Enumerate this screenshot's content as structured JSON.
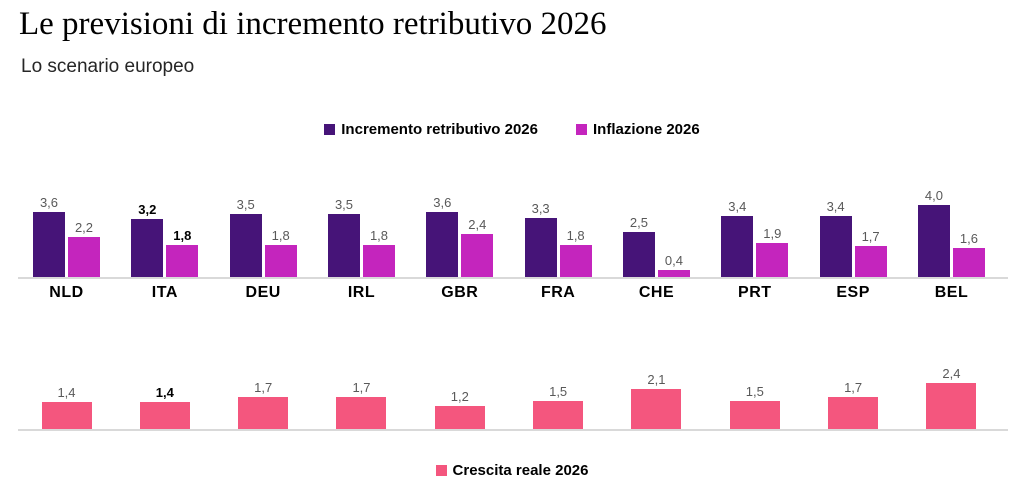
{
  "header": {
    "title": "Le previsioni di incremento retributivo 2026",
    "subtitle": "Lo scenario europeo"
  },
  "colors": {
    "salary": "#461478",
    "inflation": "#c425bd",
    "real_growth": "#f4567e",
    "value_label": "#595959",
    "highlight_label": "#000000",
    "axis_line": "#d9d9d9"
  },
  "chart_data": [
    {
      "type": "bar",
      "title": "",
      "categories": [
        "NLD",
        "ITA",
        "DEU",
        "IRL",
        "GBR",
        "FRA",
        "CHE",
        "PRT",
        "ESP",
        "BEL"
      ],
      "highlight_category": "ITA",
      "legend_position": "top",
      "grid": false,
      "show_category_labels": true,
      "ylim": [
        0,
        4.5
      ],
      "series": [
        {
          "name": "Incremento retributivo 2026",
          "color_key": "salary",
          "values": [
            3.6,
            3.2,
            3.5,
            3.5,
            3.6,
            3.3,
            2.5,
            3.4,
            3.4,
            4.0
          ],
          "labels": [
            "3,6",
            "3,2",
            "3,5",
            "3,5",
            "3,6",
            "3,3",
            "2,5",
            "3,4",
            "3,4",
            "4,0"
          ]
        },
        {
          "name": "Inflazione 2026",
          "color_key": "inflation",
          "values": [
            2.2,
            1.8,
            1.8,
            1.8,
            2.4,
            1.8,
            0.4,
            1.9,
            1.7,
            1.6
          ],
          "labels": [
            "2,2",
            "1,8",
            "1,8",
            "1,8",
            "2,4",
            "1,8",
            "0,4",
            "1,9",
            "1,7",
            "1,6"
          ]
        }
      ]
    },
    {
      "type": "bar",
      "title": "",
      "categories": [
        "NLD",
        "ITA",
        "DEU",
        "IRL",
        "GBR",
        "FRA",
        "CHE",
        "PRT",
        "ESP",
        "BEL"
      ],
      "highlight_category": "ITA",
      "legend_position": "bottom",
      "grid": false,
      "show_category_labels": false,
      "ylim": [
        0,
        2.7
      ],
      "series": [
        {
          "name": "Crescita reale 2026",
          "color_key": "real_growth",
          "values": [
            1.4,
            1.4,
            1.7,
            1.7,
            1.2,
            1.5,
            2.1,
            1.5,
            1.7,
            2.4
          ],
          "labels": [
            "1,4",
            "1,4",
            "1,7",
            "1,7",
            "1,2",
            "1,5",
            "2,1",
            "1,5",
            "1,7",
            "2,4"
          ]
        }
      ]
    }
  ]
}
